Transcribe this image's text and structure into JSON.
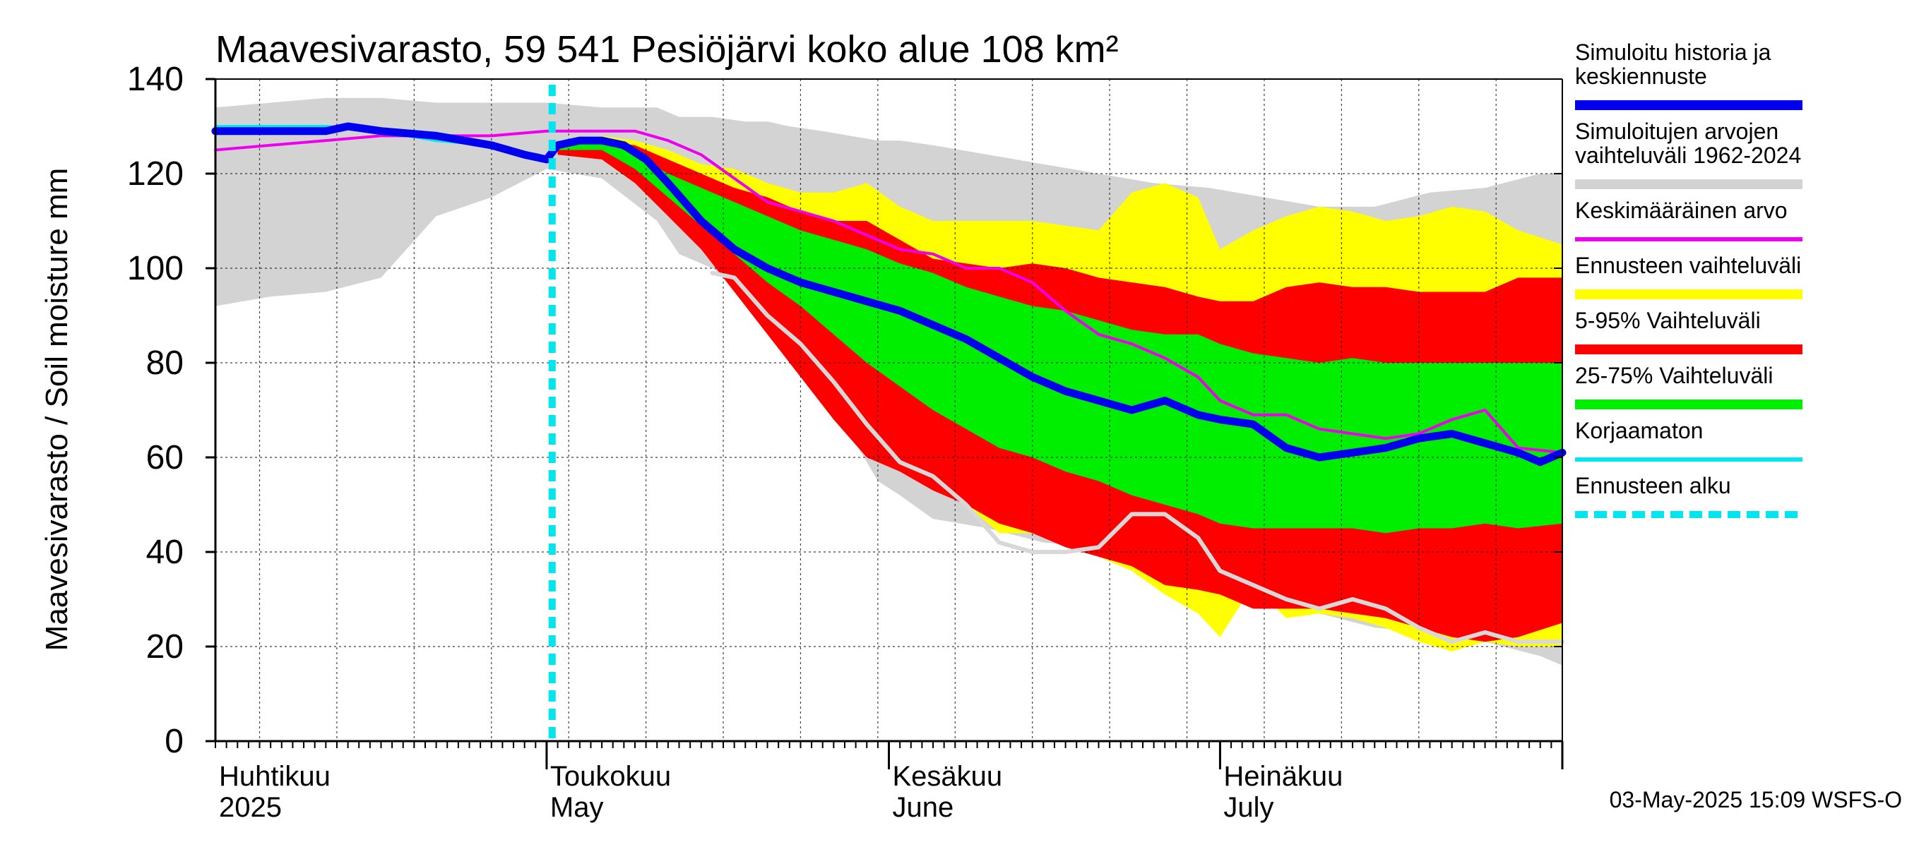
{
  "chart_data": {
    "type": "area",
    "title": "Maavesivarasto, 59 541 Pesiöjärvi koko alue 108 km²",
    "ylabel": "Maavesivarasto / Soil moisture   mm",
    "ylim": [
      0,
      140
    ],
    "yticks": [
      "0",
      "20",
      "40",
      "60",
      "80",
      "100",
      "120",
      "140"
    ],
    "xlim_days": [
      0,
      122
    ],
    "x_unit": "days since 2025-04-01",
    "forecast_start_day": 30.5,
    "month_labels": [
      {
        "day": 0,
        "fi": "Huhtikuu",
        "en": "2025"
      },
      {
        "day": 30,
        "fi": "Toukokuu",
        "en": "May"
      },
      {
        "day": 61,
        "fi": "Kesäkuu",
        "en": "June"
      },
      {
        "day": 91,
        "fi": "Heinäkuu",
        "en": "July"
      }
    ],
    "timestamp": "03-May-2025 15:09 WSFS-O",
    "series": [
      {
        "name": "Simuloitujen arvojen vaihteluväli 1962-2024",
        "kind": "band",
        "color": "#d3d3d3",
        "x": [
          0,
          5,
          10,
          15,
          20,
          25,
          30,
          35,
          40,
          42,
          45,
          48,
          50,
          52,
          55,
          60,
          62,
          65,
          70,
          75,
          80,
          85,
          90,
          95,
          100,
          105,
          110,
          115,
          120,
          122
        ],
        "low": [
          92,
          94,
          95,
          98,
          111,
          115,
          121,
          119,
          110,
          103,
          100,
          95,
          91,
          95,
          75,
          55,
          52,
          47,
          45,
          42,
          41,
          40,
          36,
          32,
          27,
          24,
          23,
          21,
          18,
          16
        ],
        "high": [
          134,
          135,
          136,
          136,
          135,
          135,
          135,
          134,
          134,
          132,
          132,
          131,
          131,
          130,
          129,
          127,
          127,
          126,
          124,
          122,
          120,
          118,
          117,
          115,
          113,
          113,
          116,
          117,
          120,
          120
        ]
      },
      {
        "name": "Ennusteen vaihteluväli",
        "kind": "band",
        "color": "#ffff00",
        "x": [
          31,
          35,
          38,
          41,
          44,
          47,
          50,
          53,
          56,
          59,
          62,
          65,
          68,
          71,
          74,
          77,
          80,
          83,
          86,
          89,
          91,
          94,
          97,
          100,
          103,
          106,
          109,
          112,
          115,
          118,
          122
        ],
        "low": [
          124,
          123,
          119,
          113,
          106,
          98,
          91,
          83,
          74,
          65,
          61,
          56,
          50,
          44,
          44,
          42,
          39,
          36,
          31,
          27,
          22,
          33,
          26,
          27,
          26,
          24,
          21,
          19,
          21,
          20,
          20
        ],
        "high": [
          126,
          128,
          127,
          125,
          122,
          121,
          118,
          116,
          116,
          118,
          113,
          110,
          110,
          110,
          110,
          109,
          108,
          116,
          118,
          115,
          104,
          108,
          111,
          113,
          112,
          110,
          111,
          113,
          112,
          108,
          105
        ]
      },
      {
        "name": "5-95% Vaihteluväli",
        "kind": "band",
        "color": "#ff0000",
        "x": [
          31,
          35,
          38,
          41,
          44,
          47,
          50,
          53,
          56,
          59,
          62,
          65,
          68,
          71,
          74,
          77,
          80,
          83,
          86,
          89,
          91,
          94,
          97,
          100,
          103,
          106,
          109,
          112,
          115,
          118,
          122
        ],
        "low": [
          124,
          123,
          118,
          111,
          104,
          95,
          86,
          77,
          68,
          60,
          57,
          53,
          50,
          46,
          44,
          41,
          39,
          37,
          33,
          32,
          31,
          28,
          28,
          28,
          27,
          26,
          24,
          22,
          21,
          22,
          25
        ],
        "high": [
          126,
          127,
          126,
          123,
          120,
          117,
          115,
          112,
          110,
          110,
          106,
          102,
          101,
          100,
          101,
          100,
          98,
          97,
          96,
          94,
          93,
          93,
          96,
          97,
          96,
          96,
          95,
          95,
          95,
          98,
          98
        ]
      },
      {
        "name": "25-75% Vaihteluväli",
        "kind": "band",
        "color": "#00ee00",
        "x": [
          31,
          35,
          38,
          41,
          44,
          47,
          50,
          53,
          56,
          59,
          62,
          65,
          68,
          71,
          74,
          77,
          80,
          83,
          86,
          89,
          91,
          94,
          97,
          100,
          103,
          106,
          109,
          112,
          115,
          118,
          122
        ],
        "low": [
          125,
          125,
          121,
          115,
          109,
          103,
          97,
          92,
          86,
          80,
          75,
          70,
          66,
          62,
          60,
          57,
          55,
          52,
          50,
          48,
          46,
          45,
          45,
          45,
          45,
          44,
          45,
          45,
          46,
          45,
          46
        ],
        "high": [
          126,
          127,
          124,
          120,
          117,
          114,
          111,
          108,
          106,
          104,
          101,
          99,
          96,
          94,
          92,
          91,
          89,
          87,
          86,
          86,
          84,
          82,
          81,
          80,
          81,
          80,
          80,
          80,
          80,
          80,
          80
        ]
      },
      {
        "name": "Keskimääräinen arvo",
        "kind": "line",
        "color": "#ee00ee",
        "width": 4,
        "x": [
          0,
          5,
          10,
          15,
          20,
          25,
          30,
          35,
          38,
          41,
          44,
          47,
          50,
          53,
          56,
          59,
          62,
          65,
          68,
          71,
          74,
          77,
          80,
          83,
          86,
          89,
          91,
          94,
          97,
          100,
          103,
          106,
          109,
          112,
          115,
          118,
          122
        ],
        "y": [
          125,
          126,
          127,
          128,
          128,
          128,
          129,
          129,
          129,
          127,
          124,
          119,
          114,
          112,
          110,
          107,
          104,
          103,
          100,
          100,
          97,
          91,
          86,
          84,
          81,
          77,
          72,
          69,
          69,
          66,
          65,
          64,
          65,
          68,
          70,
          62,
          61
        ]
      },
      {
        "name": "Simuloitu historia ja keskiennuste",
        "kind": "line",
        "color": "#0000ee",
        "width": 11,
        "x": [
          0,
          5,
          10,
          12,
          15,
          20,
          25,
          28,
          30,
          31,
          33,
          35,
          37,
          39,
          41,
          44,
          47,
          50,
          53,
          56,
          59,
          62,
          65,
          68,
          71,
          74,
          77,
          80,
          83,
          86,
          89,
          91,
          94,
          97,
          100,
          103,
          106,
          109,
          112,
          115,
          118,
          120,
          122
        ],
        "y": [
          129,
          129,
          129,
          130,
          129,
          128,
          126,
          124,
          123,
          126,
          127,
          127,
          126,
          123,
          118,
          110,
          104,
          100,
          97,
          95,
          93,
          91,
          88,
          85,
          81,
          77,
          74,
          72,
          70,
          72,
          69,
          68,
          67,
          62,
          60,
          61,
          62,
          64,
          65,
          63,
          61,
          59,
          61
        ]
      },
      {
        "name": "Korjaamaton",
        "kind": "line",
        "color": "#00e5ee",
        "width": 4,
        "x": [
          0,
          5,
          10,
          15,
          20,
          25,
          28,
          30
        ],
        "y": [
          130,
          130,
          130,
          129,
          127,
          126,
          124,
          123
        ]
      },
      {
        "name": "Previous year",
        "kind": "line",
        "color": "#d8d8d8",
        "width": 6,
        "x": [
          45,
          47,
          50,
          53,
          56,
          59,
          62,
          65,
          68,
          71,
          74,
          77,
          80,
          83,
          86,
          89,
          91,
          94,
          97,
          100,
          103,
          106,
          109,
          112,
          115,
          118,
          122
        ],
        "y": [
          99,
          98,
          90,
          84,
          76,
          67,
          59,
          56,
          50,
          42,
          40,
          40,
          41,
          48,
          48,
          43,
          36,
          33,
          30,
          28,
          30,
          28,
          24,
          21,
          23,
          21,
          21
        ]
      }
    ],
    "legend": [
      {
        "label": "Simuloitu historia ja\nkeskiennuste",
        "color": "#0000ee",
        "style": "thick"
      },
      {
        "label": "Simuloitujen arvojen\nvaihteluväli 1962-2024",
        "color": "#d3d3d3",
        "style": "thick"
      },
      {
        "label": "Keskimääräinen arvo",
        "color": "#ee00ee",
        "style": "thin"
      },
      {
        "label": "Ennusteen vaihteluväli",
        "color": "#ffff00",
        "style": "thick"
      },
      {
        "label": "5-95% Vaihteluväli",
        "color": "#ff0000",
        "style": "thick"
      },
      {
        "label": "25-75% Vaihteluväli",
        "color": "#00ee00",
        "style": "thick"
      },
      {
        "label": "Korjaamaton",
        "color": "#00e5ee",
        "style": "thin"
      },
      {
        "label": "Ennusteen alku",
        "color": "#00e5ee",
        "style": "dashed"
      }
    ]
  }
}
